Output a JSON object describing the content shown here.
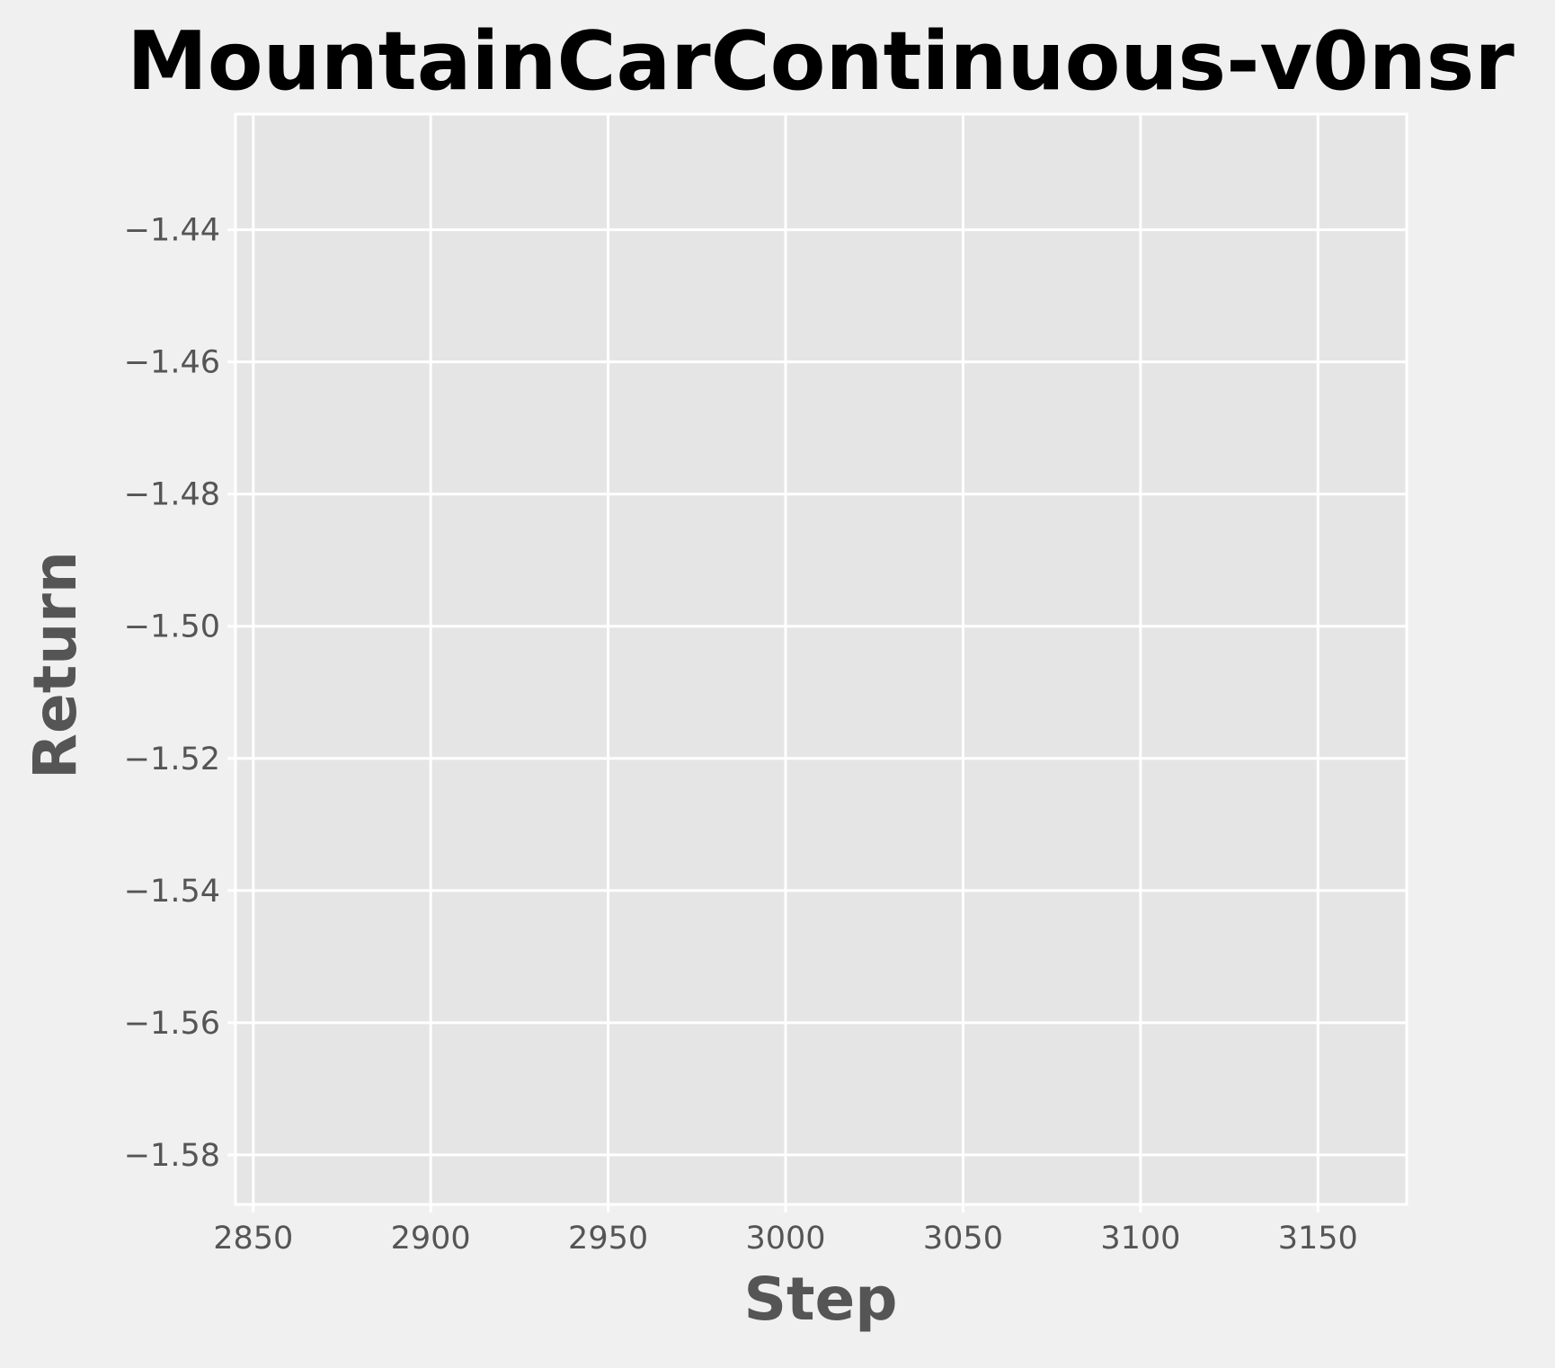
{
  "chart_data": {
    "type": "line",
    "title": "MountainCarContinuous-v0nsr",
    "xlabel": "Step",
    "ylabel": "Return",
    "xlim": [
      2845,
      3175
    ],
    "ylim": [
      -1.5875,
      -1.4225
    ],
    "xticks": [
      2850,
      2900,
      2950,
      3000,
      3050,
      3100,
      3150
    ],
    "xtick_labels": [
      "2850",
      "2900",
      "2950",
      "3000",
      "3050",
      "3100",
      "3150"
    ],
    "yticks": [
      -1.44,
      -1.46,
      -1.48,
      -1.5,
      -1.52,
      -1.54,
      -1.56,
      -1.58
    ],
    "ytick_labels": [
      "−1.44",
      "−1.46",
      "−1.48",
      "−1.50",
      "−1.52",
      "−1.54",
      "−1.56",
      "−1.58"
    ],
    "series": [],
    "grid": true,
    "colors": {
      "figure_bg": "#f0f0f0",
      "axes_bg": "#e5e5e5",
      "grid": "#ffffff",
      "tick_text": "#555555",
      "title_text": "#000000"
    }
  }
}
